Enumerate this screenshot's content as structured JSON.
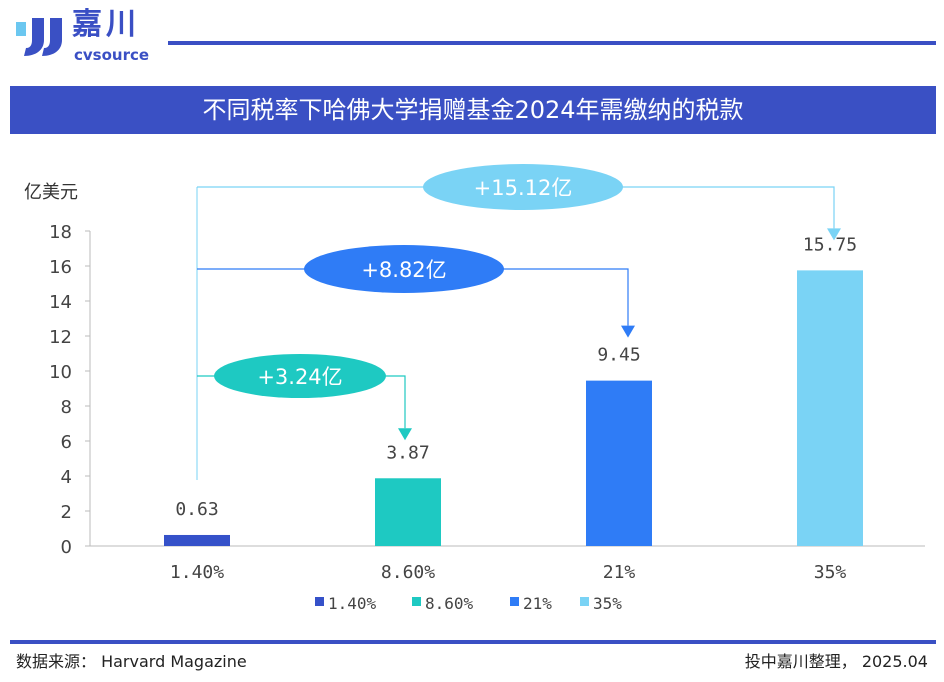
{
  "header": {
    "logo_cn": "嘉川",
    "logo_en": "cvsource",
    "title": "不同税率下哈佛大学捐赠基金2024年需缴纳的税款"
  },
  "colors": {
    "brand": "#3a50c4",
    "bar1": "#3551c9",
    "bar2": "#1ec9c2",
    "bar3": "#2f7cf6",
    "bar4": "#7ad3f5"
  },
  "chart_data": {
    "type": "bar",
    "title": "不同税率下哈佛大学捐赠基金2024年需缴纳的税款",
    "ylabel": "亿美元",
    "ylim": [
      0,
      18
    ],
    "yticks": [
      "0",
      "2",
      "4",
      "6",
      "8",
      "10",
      "12",
      "14",
      "16",
      "18"
    ],
    "categories": [
      "1.40%",
      "8.60%",
      "21%",
      "35%"
    ],
    "values": [
      0.63,
      3.87,
      9.45,
      15.75
    ],
    "value_labels": [
      "0.63",
      "3.87",
      "9.45",
      "15.75"
    ],
    "legend": [
      "1.40%",
      "8.60%",
      "21%",
      "35%"
    ],
    "legend_position": "bottom",
    "annotations": [
      {
        "text": "+3.24亿",
        "from": "1.40%",
        "to": "8.60%"
      },
      {
        "text": "+8.82亿",
        "from": "1.40%",
        "to": "21%"
      },
      {
        "text": "+15.12亿",
        "from": "1.40%",
        "to": "35%"
      }
    ]
  },
  "footer": {
    "source": "数据来源：  Harvard Magazine",
    "note": "投中嘉川整理， 2025.04"
  }
}
